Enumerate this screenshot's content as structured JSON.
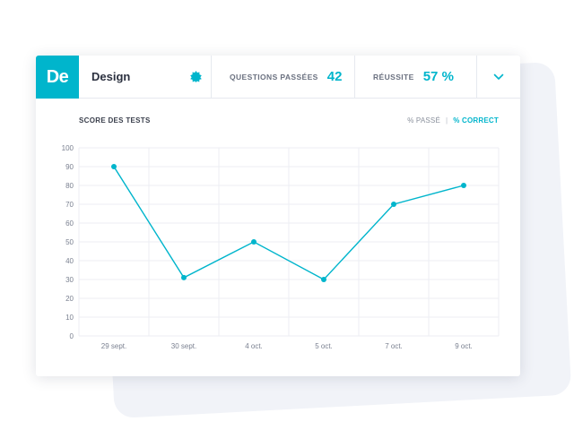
{
  "header": {
    "logo_text": "De",
    "course_title": "Design",
    "badge_icon": "badge-icon",
    "questions_label": "QUESTIONS PASSÉES",
    "questions_value": "42",
    "reussite_label": "RÉUSSITE",
    "reussite_value": "57 %",
    "dropdown_icon": "chevron-down-icon"
  },
  "toggles": {
    "passe": "% PASSÉ",
    "separator": "|",
    "correct": "% CORRECT",
    "active": "correct"
  },
  "accent_color": "#00b5cc",
  "chart_data": {
    "type": "line",
    "title": "SCORE DES TESTS",
    "xlabel": "",
    "ylabel": "",
    "categories": [
      "29 sept.",
      "30 sept.",
      "4 oct.",
      "5 oct.",
      "7 oct.",
      "9 oct."
    ],
    "values": [
      90,
      31,
      50,
      30,
      70,
      80
    ],
    "ylim": [
      0,
      100
    ],
    "yticks": [
      0,
      10,
      20,
      30,
      40,
      50,
      60,
      70,
      80,
      90,
      100
    ],
    "grid": true,
    "legend": "none"
  }
}
